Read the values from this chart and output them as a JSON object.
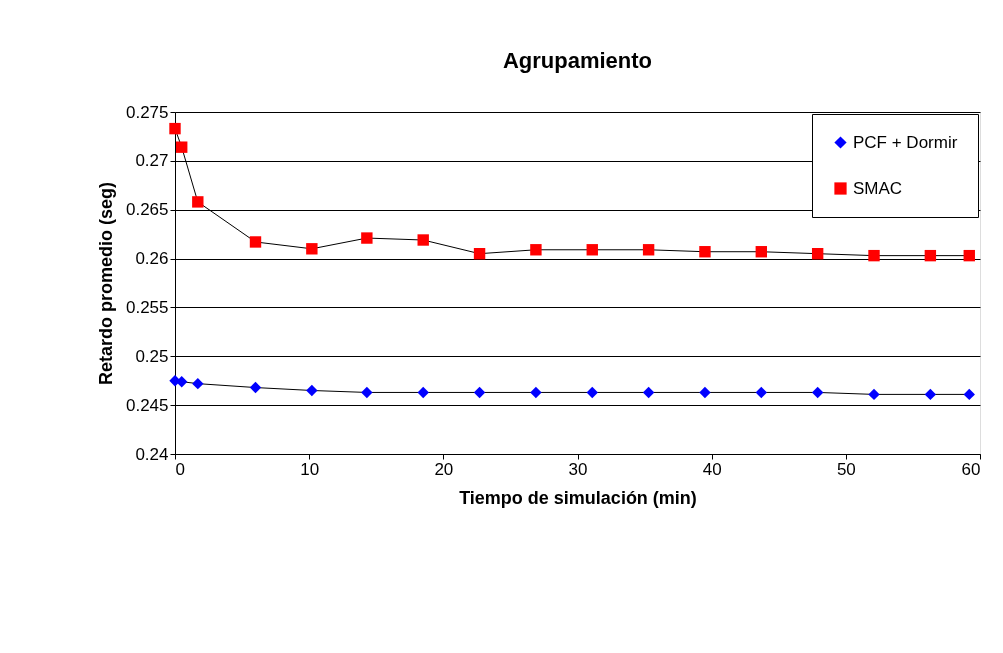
{
  "chart_data": {
    "type": "line",
    "title": "Agrupamiento",
    "xlabel": "Tiempo de simulación (min)",
    "ylabel": "Retardo promedio (seg)",
    "x": [
      0,
      0.5,
      1.7,
      6.0,
      10.2,
      14.3,
      18.5,
      22.7,
      26.9,
      31.1,
      35.3,
      39.5,
      43.7,
      47.9,
      52.1,
      56.3,
      59.2
    ],
    "series": [
      {
        "name": "PCF + Dormir",
        "color": "#0000ff",
        "marker": "diamond",
        "values": [
          0.2475,
          0.2474,
          0.2472,
          0.2468,
          0.2465,
          0.2463,
          0.2463,
          0.2463,
          0.2463,
          0.2463,
          0.2463,
          0.2463,
          0.2463,
          0.2463,
          0.2461,
          0.2461,
          0.2461
        ]
      },
      {
        "name": "SMAC",
        "color": "#ff0000",
        "marker": "square",
        "values": [
          0.2733,
          0.2714,
          0.2658,
          0.2617,
          0.261,
          0.2621,
          0.2619,
          0.2605,
          0.2609,
          0.2609,
          0.2609,
          0.2607,
          0.2607,
          0.2605,
          0.2603,
          0.2603,
          0.2603
        ]
      }
    ],
    "xlim": [
      0,
      60
    ],
    "xticks": [
      0,
      10,
      20,
      30,
      40,
      50,
      60
    ],
    "ylim": [
      0.24,
      0.275
    ],
    "yticks": [
      0.24,
      0.245,
      0.25,
      0.255,
      0.26,
      0.265,
      0.27,
      0.275
    ],
    "grid": "y",
    "legend": "top right",
    "line_style": "solid"
  }
}
